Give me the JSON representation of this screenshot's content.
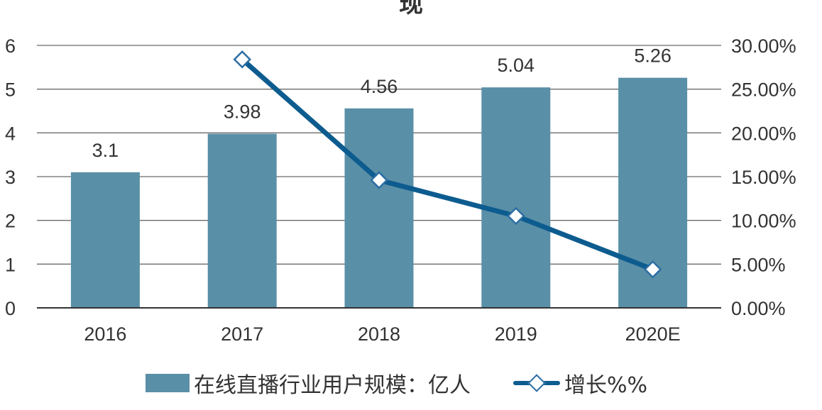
{
  "chart_data": {
    "type": "bar+line",
    "title": "…现",
    "categories": [
      "2016",
      "2017",
      "2018",
      "2019",
      "2020E"
    ],
    "series": [
      {
        "name": "在线直播行业用户规模：亿人",
        "type": "bar",
        "axis": "left",
        "color": "#5a8fa8",
        "values": [
          3.1,
          3.98,
          4.56,
          5.04,
          5.26
        ],
        "labels": [
          "3.1",
          "3.98",
          "4.56",
          "5.04",
          "5.26"
        ]
      },
      {
        "name": "增长%%",
        "type": "line",
        "axis": "right",
        "color": "#0d5c8f",
        "marker": "diamond-open",
        "values": [
          null,
          28.4,
          14.6,
          10.5,
          4.4
        ]
      }
    ],
    "left_axis": {
      "ylim": [
        0,
        6
      ],
      "ticks": [
        "0",
        "1",
        "2",
        "3",
        "4",
        "5",
        "6"
      ]
    },
    "right_axis": {
      "ylim": [
        0,
        30
      ],
      "ticks": [
        "0.00%",
        "5.00%",
        "10.00%",
        "15.00%",
        "20.00%",
        "25.00%",
        "30.00%"
      ]
    },
    "xlabel": "",
    "ylabel": "",
    "grid": true,
    "legend_position": "bottom"
  },
  "title_fragment": "现",
  "legend": {
    "bar_label": "在线直播行业用户规模：亿人",
    "line_label": "增长%%"
  }
}
